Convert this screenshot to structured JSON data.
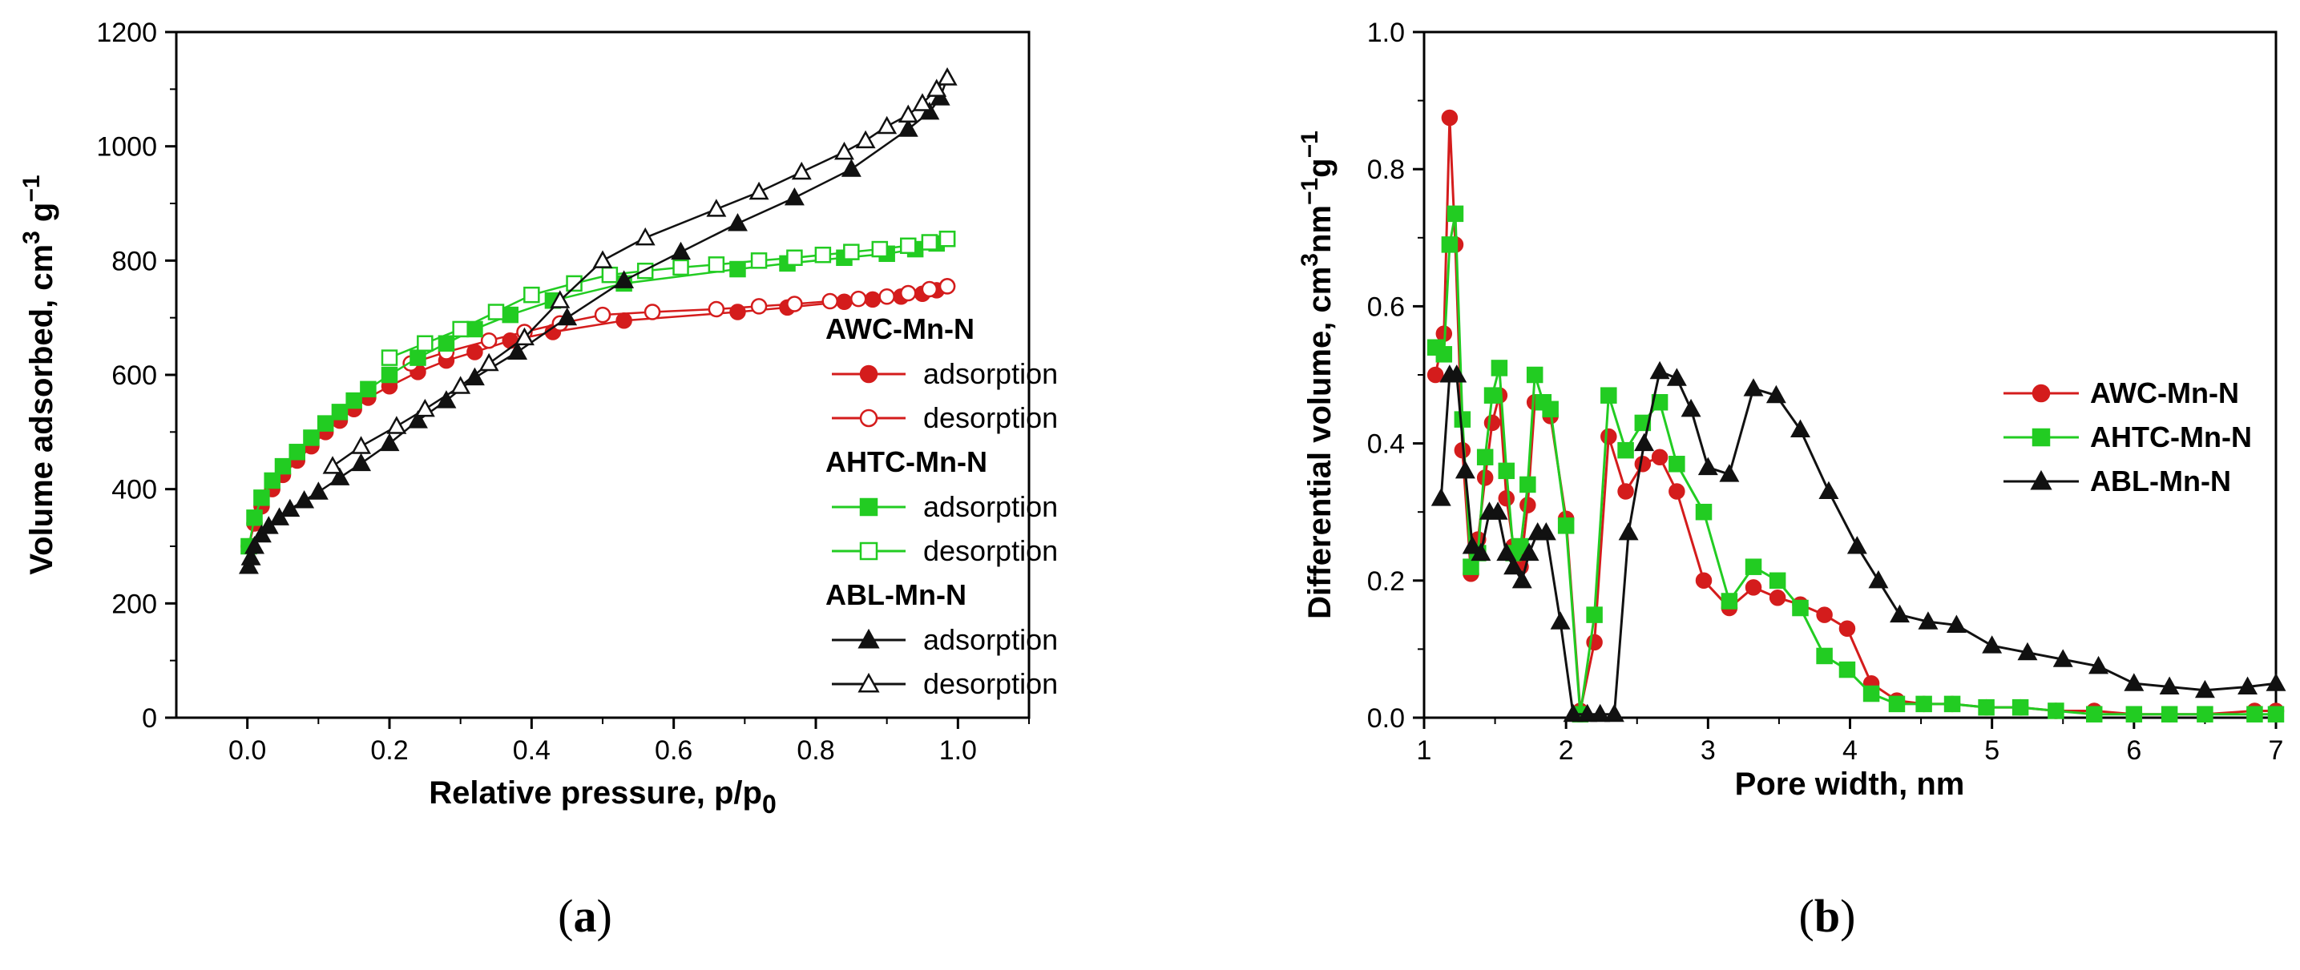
{
  "panels": {
    "a": {
      "open": "(",
      "letter": "a",
      "close": ")"
    },
    "b": {
      "open": "(",
      "letter": "b",
      "close": ")"
    }
  },
  "colors": {
    "AWC": "#d41c1c",
    "AHTC": "#22cc22",
    "ABL": "#111111"
  },
  "chart_data": [
    {
      "type": "scatter",
      "panel": "a",
      "xlabel_main": "Relative pressure, p/p",
      "xlabel_sub": "0",
      "ylabel_main": "Volume adsorbed, cm",
      "ylabel_sup": "3",
      "ylabel_mid": " g",
      "ylabel_sup2": "−1",
      "xlim": [
        -0.1,
        1.1
      ],
      "ylim": [
        0,
        1200
      ],
      "xticks": [
        0.0,
        0.2,
        0.4,
        0.6,
        0.8,
        1.0
      ],
      "xtick_labels": [
        "0.0",
        "0.2",
        "0.4",
        "0.6",
        "0.8",
        "1.0"
      ],
      "yticks": [
        0,
        200,
        400,
        600,
        800,
        1000,
        1200
      ],
      "ytick_labels": [
        "0",
        "200",
        "400",
        "600",
        "800",
        "1000",
        "1200"
      ],
      "legend_groups": [
        {
          "name": "AWC-Mn-N",
          "color": "#d41c1c",
          "marker": "circle",
          "adsorption": "adsorption",
          "desorption": "desorption"
        },
        {
          "name": "AHTC-Mn-N",
          "color": "#22cc22",
          "marker": "square",
          "adsorption": "adsorption",
          "desorption": "desorption"
        },
        {
          "name": "ABL-Mn-N",
          "color": "#111111",
          "marker": "triangle",
          "adsorption": "adsorption",
          "desorption": "desorption"
        }
      ],
      "series": [
        {
          "group": "AWC-Mn-N",
          "kind": "adsorption",
          "color": "#d41c1c",
          "marker": "circle",
          "filled": true,
          "x": [
            0.002,
            0.01,
            0.02,
            0.035,
            0.05,
            0.07,
            0.09,
            0.11,
            0.13,
            0.15,
            0.17,
            0.2,
            0.24,
            0.28,
            0.32,
            0.37,
            0.43,
            0.53,
            0.69,
            0.76,
            0.84,
            0.88,
            0.92,
            0.95,
            0.97,
            0.985
          ],
          "y": [
            300,
            340,
            370,
            400,
            425,
            450,
            475,
            500,
            520,
            540,
            560,
            580,
            605,
            625,
            640,
            660,
            675,
            695,
            710,
            718,
            728,
            732,
            737,
            742,
            748,
            755
          ]
        },
        {
          "group": "AWC-Mn-N",
          "kind": "desorption",
          "color": "#d41c1c",
          "marker": "circle",
          "filled": false,
          "x": [
            0.985,
            0.96,
            0.93,
            0.9,
            0.86,
            0.82,
            0.77,
            0.72,
            0.66,
            0.57,
            0.5,
            0.44,
            0.39,
            0.34,
            0.28,
            0.23
          ],
          "y": [
            755,
            750,
            743,
            737,
            733,
            729,
            724,
            720,
            715,
            710,
            705,
            690,
            675,
            660,
            640,
            620
          ]
        },
        {
          "group": "AHTC-Mn-N",
          "kind": "adsorption",
          "color": "#22cc22",
          "marker": "square",
          "filled": true,
          "x": [
            0.002,
            0.01,
            0.02,
            0.035,
            0.05,
            0.07,
            0.09,
            0.11,
            0.13,
            0.15,
            0.17,
            0.2,
            0.24,
            0.28,
            0.32,
            0.37,
            0.43,
            0.53,
            0.69,
            0.76,
            0.84,
            0.9,
            0.94,
            0.97,
            0.985
          ],
          "y": [
            300,
            350,
            385,
            415,
            440,
            465,
            490,
            515,
            535,
            555,
            575,
            600,
            630,
            655,
            680,
            705,
            730,
            760,
            785,
            795,
            805,
            812,
            820,
            830,
            838
          ]
        },
        {
          "group": "AHTC-Mn-N",
          "kind": "desorption",
          "color": "#22cc22",
          "marker": "square",
          "filled": false,
          "x": [
            0.985,
            0.96,
            0.93,
            0.89,
            0.85,
            0.81,
            0.77,
            0.72,
            0.66,
            0.61,
            0.56,
            0.51,
            0.46,
            0.4,
            0.35,
            0.3,
            0.25,
            0.2
          ],
          "y": [
            838,
            832,
            826,
            820,
            815,
            810,
            805,
            800,
            793,
            788,
            782,
            775,
            760,
            740,
            710,
            680,
            655,
            630
          ]
        },
        {
          "group": "ABL-Mn-N",
          "kind": "adsorption",
          "color": "#111111",
          "marker": "triangle",
          "filled": true,
          "x": [
            0.002,
            0.005,
            0.01,
            0.02,
            0.03,
            0.045,
            0.06,
            0.08,
            0.1,
            0.13,
            0.16,
            0.2,
            0.24,
            0.28,
            0.32,
            0.38,
            0.45,
            0.53,
            0.61,
            0.69,
            0.77,
            0.85,
            0.93,
            0.96,
            0.975,
            0.985
          ],
          "y": [
            265,
            280,
            300,
            320,
            335,
            350,
            365,
            380,
            395,
            420,
            445,
            480,
            520,
            555,
            595,
            640,
            700,
            765,
            815,
            865,
            910,
            960,
            1030,
            1060,
            1085,
            1120
          ]
        },
        {
          "group": "ABL-Mn-N",
          "kind": "desorption",
          "color": "#111111",
          "marker": "triangle",
          "filled": false,
          "x": [
            0.985,
            0.97,
            0.95,
            0.93,
            0.9,
            0.87,
            0.84,
            0.78,
            0.72,
            0.66,
            0.56,
            0.5,
            0.44,
            0.39,
            0.34,
            0.3,
            0.25,
            0.21,
            0.16,
            0.12
          ],
          "y": [
            1120,
            1100,
            1075,
            1055,
            1035,
            1010,
            990,
            955,
            920,
            890,
            840,
            800,
            730,
            665,
            620,
            580,
            540,
            510,
            475,
            440
          ]
        }
      ]
    },
    {
      "type": "line",
      "panel": "b",
      "xlabel": "Pore width, nm",
      "ylabel_main": "Differential volume, cm",
      "ylabel_sup": "3",
      "ylabel_mid": "nm",
      "ylabel_sup2": "−1",
      "ylabel_end": "g",
      "ylabel_sup3": "−1",
      "xlim": [
        1,
        7
      ],
      "ylim": [
        0,
        1.0
      ],
      "xticks": [
        1,
        2,
        3,
        4,
        5,
        6,
        7
      ],
      "xtick_labels": [
        "1",
        "2",
        "3",
        "4",
        "5",
        "6",
        "7"
      ],
      "yticks": [
        0.0,
        0.2,
        0.4,
        0.6,
        0.8,
        1.0
      ],
      "ytick_labels": [
        "0.0",
        "0.2",
        "0.4",
        "0.6",
        "0.8",
        "1.0"
      ],
      "legend_position": "right",
      "series": [
        {
          "name": "AWC-Mn-N",
          "color": "#d41c1c",
          "marker": "circle",
          "x": [
            1.08,
            1.14,
            1.18,
            1.22,
            1.27,
            1.33,
            1.38,
            1.43,
            1.48,
            1.53,
            1.58,
            1.63,
            1.68,
            1.73,
            1.78,
            1.84,
            1.89,
            2.0,
            2.1,
            2.2,
            2.3,
            2.42,
            2.54,
            2.66,
            2.78,
            2.97,
            3.15,
            3.32,
            3.49,
            3.65,
            3.82,
            3.98,
            4.15,
            4.33,
            4.52,
            4.72,
            4.96,
            5.2,
            5.45,
            5.72,
            6.0,
            6.25,
            6.5,
            6.85,
            7.0
          ],
          "y": [
            0.5,
            0.56,
            0.875,
            0.69,
            0.39,
            0.21,
            0.26,
            0.35,
            0.43,
            0.47,
            0.32,
            0.25,
            0.22,
            0.31,
            0.46,
            0.46,
            0.44,
            0.29,
            0.01,
            0.11,
            0.41,
            0.33,
            0.37,
            0.38,
            0.33,
            0.2,
            0.16,
            0.19,
            0.175,
            0.165,
            0.15,
            0.13,
            0.05,
            0.025,
            0.02,
            0.02,
            0.015,
            0.015,
            0.01,
            0.01,
            0.005,
            0.005,
            0.005,
            0.01,
            0.01
          ]
        },
        {
          "name": "AHTC-Mn-N",
          "color": "#22cc22",
          "marker": "square",
          "x": [
            1.08,
            1.14,
            1.18,
            1.22,
            1.27,
            1.33,
            1.38,
            1.43,
            1.48,
            1.53,
            1.58,
            1.63,
            1.68,
            1.73,
            1.78,
            1.84,
            1.89,
            2.0,
            2.1,
            2.2,
            2.3,
            2.42,
            2.54,
            2.66,
            2.78,
            2.97,
            3.15,
            3.32,
            3.49,
            3.65,
            3.82,
            3.98,
            4.15,
            4.33,
            4.52,
            4.72,
            4.96,
            5.2,
            5.45,
            5.72,
            6.0,
            6.25,
            6.5,
            6.85,
            7.0
          ],
          "y": [
            0.54,
            0.53,
            0.69,
            0.735,
            0.435,
            0.22,
            0.24,
            0.38,
            0.47,
            0.51,
            0.36,
            0.24,
            0.25,
            0.34,
            0.5,
            0.46,
            0.45,
            0.28,
            0.005,
            0.15,
            0.47,
            0.39,
            0.43,
            0.46,
            0.37,
            0.3,
            0.17,
            0.22,
            0.2,
            0.16,
            0.09,
            0.07,
            0.035,
            0.02,
            0.02,
            0.02,
            0.015,
            0.015,
            0.01,
            0.005,
            0.005,
            0.005,
            0.005,
            0.005,
            0.005
          ]
        },
        {
          "name": "ABL-Mn-N",
          "color": "#111111",
          "marker": "triangle",
          "x": [
            1.12,
            1.18,
            1.23,
            1.29,
            1.34,
            1.4,
            1.46,
            1.52,
            1.58,
            1.63,
            1.69,
            1.74,
            1.8,
            1.86,
            1.96,
            2.05,
            2.15,
            2.24,
            2.34,
            2.44,
            2.55,
            2.66,
            2.78,
            2.88,
            3.0,
            3.15,
            3.32,
            3.48,
            3.65,
            3.85,
            4.05,
            4.2,
            4.35,
            4.55,
            4.75,
            5.0,
            5.25,
            5.5,
            5.75,
            6.0,
            6.25,
            6.5,
            6.8,
            7.0
          ],
          "y": [
            0.32,
            0.5,
            0.5,
            0.36,
            0.25,
            0.24,
            0.3,
            0.3,
            0.24,
            0.22,
            0.2,
            0.24,
            0.27,
            0.27,
            0.14,
            0.005,
            0.005,
            0.005,
            0.005,
            0.27,
            0.4,
            0.505,
            0.495,
            0.45,
            0.365,
            0.355,
            0.48,
            0.47,
            0.42,
            0.33,
            0.25,
            0.2,
            0.15,
            0.14,
            0.135,
            0.105,
            0.095,
            0.085,
            0.075,
            0.05,
            0.045,
            0.04,
            0.045,
            0.05
          ]
        }
      ]
    }
  ]
}
